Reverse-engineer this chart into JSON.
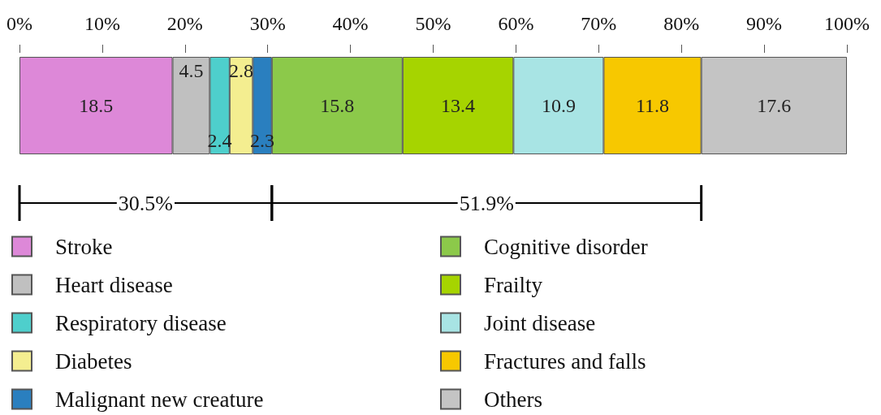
{
  "chart_data": {
    "type": "bar",
    "orientation": "horizontal",
    "stacked": true,
    "categories": [
      null
    ],
    "series": [
      {
        "name": "Stroke",
        "color": "#dd88d8",
        "values": [
          18.5
        ]
      },
      {
        "name": "Heart disease",
        "color": "#c0c0c0",
        "values": [
          4.5
        ]
      },
      {
        "name": "Respiratory disease",
        "color": "#4ecfcc",
        "values": [
          2.4
        ]
      },
      {
        "name": "Diabetes",
        "color": "#f4ee90",
        "values": [
          2.8
        ]
      },
      {
        "name": "Malignant new creature",
        "color": "#2a7fbf",
        "values": [
          2.3
        ]
      },
      {
        "name": "Cognitive disorder",
        "color": "#8cc94a",
        "values": [
          15.8
        ]
      },
      {
        "name": "Frailty",
        "color": "#a6d400",
        "values": [
          13.4
        ]
      },
      {
        "name": "Joint disease",
        "color": "#a8e4e4",
        "values": [
          10.9
        ]
      },
      {
        "name": "Fractures and falls",
        "color": "#f7c800",
        "values": [
          11.8
        ]
      },
      {
        "name": "Others",
        "color": "#c4c4c4",
        "values": [
          17.6
        ]
      }
    ],
    "xlim": [
      0,
      100
    ],
    "xticks": [
      {
        "value": 0,
        "label": "0%"
      },
      {
        "value": 10,
        "label": "10%"
      },
      {
        "value": 20,
        "label": "20%"
      },
      {
        "value": 30,
        "label": "30%"
      },
      {
        "value": 40,
        "label": "40%"
      },
      {
        "value": 50,
        "label": "50%"
      },
      {
        "value": 60,
        "label": "60%"
      },
      {
        "value": 70,
        "label": "70%"
      },
      {
        "value": 80,
        "label": "80%"
      },
      {
        "value": 90,
        "label": "90%"
      },
      {
        "value": 100,
        "label": "100%"
      }
    ],
    "annotations": [
      "30.5%",
      "51.9%"
    ],
    "data_labels": true,
    "legend": "bottom",
    "grid": false
  }
}
